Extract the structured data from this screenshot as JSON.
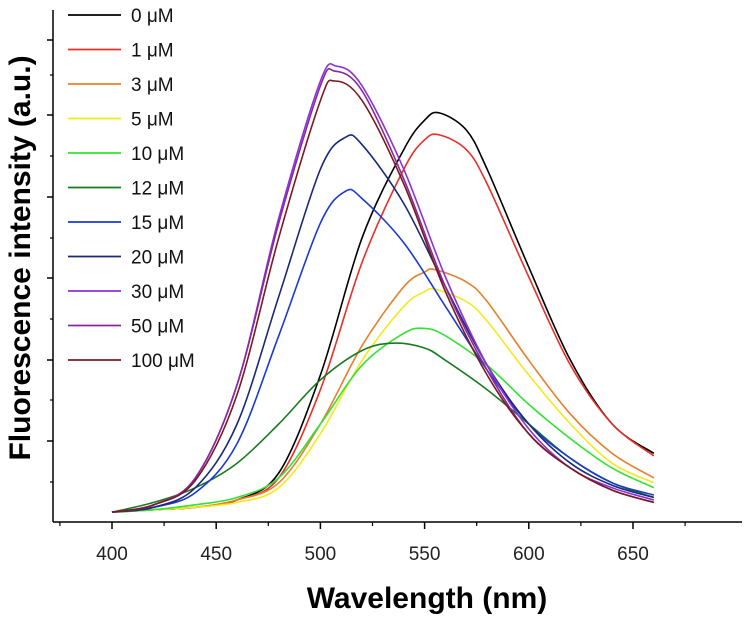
{
  "chart_data": {
    "type": "line",
    "title": "",
    "xlabel": "Wavelength (nm)",
    "ylabel": "Fluorescence intensity (a.u.)",
    "xlim": [
      375,
      665
    ],
    "ylim": [
      0,
      1.05
    ],
    "xticks": [
      400,
      450,
      500,
      550,
      600,
      650
    ],
    "y_tick_labels_shown": false,
    "legend_position": "top-left",
    "series": [
      {
        "name": "0 μM",
        "color": "#000000",
        "points": [
          [
            400,
            0.02
          ],
          [
            420,
            0.025
          ],
          [
            440,
            0.03
          ],
          [
            460,
            0.045
          ],
          [
            480,
            0.1
          ],
          [
            500,
            0.3
          ],
          [
            520,
            0.58
          ],
          [
            540,
            0.76
          ],
          [
            550,
            0.82
          ],
          [
            557,
            0.835
          ],
          [
            570,
            0.8
          ],
          [
            580,
            0.72
          ],
          [
            600,
            0.52
          ],
          [
            620,
            0.33
          ],
          [
            640,
            0.2
          ],
          [
            660,
            0.14
          ]
        ]
      },
      {
        "name": "1 μM",
        "color": "#e8302a",
        "points": [
          [
            400,
            0.02
          ],
          [
            420,
            0.025
          ],
          [
            440,
            0.03
          ],
          [
            460,
            0.045
          ],
          [
            480,
            0.09
          ],
          [
            500,
            0.27
          ],
          [
            520,
            0.53
          ],
          [
            540,
            0.72
          ],
          [
            550,
            0.78
          ],
          [
            557,
            0.79
          ],
          [
            570,
            0.76
          ],
          [
            580,
            0.69
          ],
          [
            600,
            0.5
          ],
          [
            620,
            0.32
          ],
          [
            640,
            0.2
          ],
          [
            660,
            0.135
          ]
        ]
      },
      {
        "name": "3 μM",
        "color": "#e87f2a",
        "points": [
          [
            400,
            0.02
          ],
          [
            420,
            0.025
          ],
          [
            440,
            0.03
          ],
          [
            460,
            0.045
          ],
          [
            480,
            0.08
          ],
          [
            500,
            0.2
          ],
          [
            520,
            0.36
          ],
          [
            540,
            0.48
          ],
          [
            550,
            0.51
          ],
          [
            555,
            0.515
          ],
          [
            570,
            0.49
          ],
          [
            580,
            0.45
          ],
          [
            600,
            0.33
          ],
          [
            620,
            0.22
          ],
          [
            640,
            0.14
          ],
          [
            660,
            0.09
          ]
        ]
      },
      {
        "name": "5 μM",
        "color": "#f2ea1c",
        "points": [
          [
            400,
            0.02
          ],
          [
            420,
            0.025
          ],
          [
            440,
            0.03
          ],
          [
            460,
            0.04
          ],
          [
            480,
            0.07
          ],
          [
            500,
            0.18
          ],
          [
            520,
            0.33
          ],
          [
            540,
            0.44
          ],
          [
            550,
            0.47
          ],
          [
            555,
            0.475
          ],
          [
            570,
            0.45
          ],
          [
            580,
            0.41
          ],
          [
            600,
            0.3
          ],
          [
            620,
            0.2
          ],
          [
            640,
            0.12
          ],
          [
            660,
            0.08
          ]
        ]
      },
      {
        "name": "10 μM",
        "color": "#33e233",
        "points": [
          [
            400,
            0.02
          ],
          [
            420,
            0.025
          ],
          [
            440,
            0.035
          ],
          [
            460,
            0.05
          ],
          [
            480,
            0.09
          ],
          [
            500,
            0.2
          ],
          [
            520,
            0.32
          ],
          [
            540,
            0.385
          ],
          [
            550,
            0.395
          ],
          [
            560,
            0.38
          ],
          [
            580,
            0.32
          ],
          [
            600,
            0.24
          ],
          [
            620,
            0.17
          ],
          [
            640,
            0.11
          ],
          [
            660,
            0.07
          ]
        ]
      },
      {
        "name": "12 μM",
        "color": "#1a7a22",
        "points": [
          [
            400,
            0.02
          ],
          [
            420,
            0.04
          ],
          [
            440,
            0.07
          ],
          [
            460,
            0.12
          ],
          [
            480,
            0.2
          ],
          [
            500,
            0.29
          ],
          [
            520,
            0.35
          ],
          [
            535,
            0.365
          ],
          [
            550,
            0.355
          ],
          [
            560,
            0.33
          ],
          [
            580,
            0.27
          ],
          [
            600,
            0.2
          ],
          [
            620,
            0.13
          ],
          [
            640,
            0.08
          ],
          [
            660,
            0.05
          ]
        ]
      },
      {
        "name": "15 μM",
        "color": "#1a3ad2",
        "points": [
          [
            400,
            0.02
          ],
          [
            420,
            0.03
          ],
          [
            440,
            0.06
          ],
          [
            460,
            0.16
          ],
          [
            480,
            0.38
          ],
          [
            500,
            0.61
          ],
          [
            512,
            0.675
          ],
          [
            520,
            0.66
          ],
          [
            540,
            0.57
          ],
          [
            560,
            0.44
          ],
          [
            580,
            0.31
          ],
          [
            600,
            0.2
          ],
          [
            620,
            0.13
          ],
          [
            640,
            0.08
          ],
          [
            660,
            0.055
          ]
        ]
      },
      {
        "name": "20 μM",
        "color": "#1a2a78",
        "points": [
          [
            400,
            0.02
          ],
          [
            420,
            0.03
          ],
          [
            440,
            0.07
          ],
          [
            460,
            0.2
          ],
          [
            480,
            0.46
          ],
          [
            500,
            0.72
          ],
          [
            512,
            0.785
          ],
          [
            520,
            0.77
          ],
          [
            540,
            0.65
          ],
          [
            560,
            0.48
          ],
          [
            580,
            0.32
          ],
          [
            600,
            0.2
          ],
          [
            620,
            0.12
          ],
          [
            640,
            0.075
          ],
          [
            660,
            0.05
          ]
        ]
      },
      {
        "name": "30 μM",
        "color": "#8a33d6",
        "points": [
          [
            400,
            0.02
          ],
          [
            420,
            0.035
          ],
          [
            440,
            0.09
          ],
          [
            460,
            0.28
          ],
          [
            480,
            0.62
          ],
          [
            500,
            0.9
          ],
          [
            508,
            0.93
          ],
          [
            520,
            0.89
          ],
          [
            540,
            0.72
          ],
          [
            560,
            0.5
          ],
          [
            580,
            0.32
          ],
          [
            600,
            0.19
          ],
          [
            620,
            0.11
          ],
          [
            640,
            0.07
          ],
          [
            660,
            0.045
          ]
        ]
      },
      {
        "name": "50 μM",
        "color": "#8a2a9a",
        "points": [
          [
            400,
            0.02
          ],
          [
            420,
            0.035
          ],
          [
            440,
            0.09
          ],
          [
            460,
            0.28
          ],
          [
            480,
            0.61
          ],
          [
            500,
            0.89
          ],
          [
            507,
            0.92
          ],
          [
            520,
            0.88
          ],
          [
            540,
            0.7
          ],
          [
            560,
            0.48
          ],
          [
            580,
            0.31
          ],
          [
            600,
            0.18
          ],
          [
            620,
            0.11
          ],
          [
            640,
            0.065
          ],
          [
            660,
            0.04
          ]
        ]
      },
      {
        "name": "100 μM",
        "color": "#7a1a22",
        "points": [
          [
            400,
            0.02
          ],
          [
            420,
            0.035
          ],
          [
            440,
            0.085
          ],
          [
            460,
            0.26
          ],
          [
            480,
            0.58
          ],
          [
            500,
            0.86
          ],
          [
            507,
            0.9
          ],
          [
            520,
            0.86
          ],
          [
            540,
            0.69
          ],
          [
            560,
            0.47
          ],
          [
            580,
            0.3
          ],
          [
            600,
            0.18
          ],
          [
            620,
            0.11
          ],
          [
            640,
            0.065
          ],
          [
            660,
            0.04
          ]
        ]
      }
    ]
  }
}
